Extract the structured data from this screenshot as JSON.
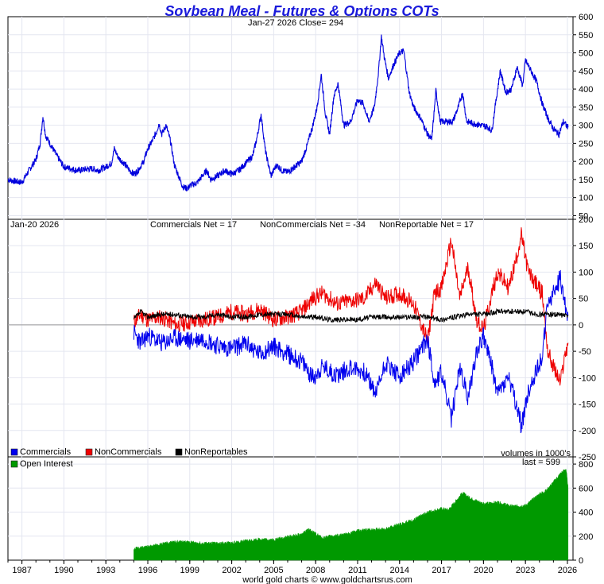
{
  "chart_data": {
    "type": "line",
    "title": "Soybean Meal - Futures & Options COTs",
    "footer": "world gold charts © www.goldchartsrus.com",
    "x_axis": {
      "range": [
        1986.0,
        2026.4
      ],
      "tick_labels": [
        "1987",
        "1990",
        "1993",
        "1996",
        "1999",
        "2002",
        "2005",
        "2008",
        "2011",
        "2014",
        "2017",
        "2020",
        "2023",
        "2026"
      ],
      "tick_values": [
        1987,
        1990,
        1993,
        1996,
        1999,
        2002,
        2005,
        2008,
        2011,
        2014,
        2017,
        2020,
        2023,
        2026
      ]
    },
    "price_panel": {
      "header": "Jan-27  2026   Close= 294",
      "ylim": [
        40,
        600
      ],
      "y_ticks": [
        50,
        100,
        150,
        200,
        250,
        300,
        350,
        400,
        450,
        500,
        550,
        600
      ],
      "series": {
        "color": "#0000dd",
        "points": [
          [
            1986.0,
            150
          ],
          [
            1986.5,
            145
          ],
          [
            1987.0,
            142
          ],
          [
            1987.5,
            175
          ],
          [
            1988.0,
            205
          ],
          [
            1988.3,
            250
          ],
          [
            1988.5,
            325
          ],
          [
            1988.7,
            270
          ],
          [
            1989.0,
            250
          ],
          [
            1989.5,
            215
          ],
          [
            1990.0,
            185
          ],
          [
            1990.5,
            180
          ],
          [
            1991.0,
            175
          ],
          [
            1991.5,
            178
          ],
          [
            1992.0,
            180
          ],
          [
            1992.5,
            175
          ],
          [
            1993.0,
            185
          ],
          [
            1993.4,
            195
          ],
          [
            1993.6,
            235
          ],
          [
            1993.9,
            210
          ],
          [
            1994.3,
            195
          ],
          [
            1994.7,
            175
          ],
          [
            1995.0,
            165
          ],
          [
            1995.3,
            175
          ],
          [
            1995.7,
            200
          ],
          [
            1996.0,
            235
          ],
          [
            1996.3,
            255
          ],
          [
            1996.6,
            280
          ],
          [
            1996.8,
            305
          ],
          [
            1997.0,
            275
          ],
          [
            1997.3,
            300
          ],
          [
            1997.6,
            260
          ],
          [
            1997.9,
            190
          ],
          [
            1998.2,
            160
          ],
          [
            1998.5,
            130
          ],
          [
            1998.8,
            125
          ],
          [
            1999.1,
            135
          ],
          [
            1999.5,
            140
          ],
          [
            1999.8,
            155
          ],
          [
            2000.2,
            175
          ],
          [
            2000.5,
            150
          ],
          [
            2001.0,
            160
          ],
          [
            2001.5,
            175
          ],
          [
            2002.0,
            165
          ],
          [
            2002.5,
            175
          ],
          [
            2003.0,
            195
          ],
          [
            2003.5,
            215
          ],
          [
            2003.8,
            265
          ],
          [
            2004.1,
            330
          ],
          [
            2004.4,
            230
          ],
          [
            2004.8,
            160
          ],
          [
            2005.2,
            190
          ],
          [
            2005.6,
            175
          ],
          [
            2006.0,
            170
          ],
          [
            2006.5,
            185
          ],
          [
            2007.0,
            200
          ],
          [
            2007.4,
            245
          ],
          [
            2007.8,
            300
          ],
          [
            2008.1,
            350
          ],
          [
            2008.4,
            440
          ],
          [
            2008.7,
            330
          ],
          [
            2009.0,
            275
          ],
          [
            2009.3,
            380
          ],
          [
            2009.6,
            415
          ],
          [
            2010.0,
            300
          ],
          [
            2010.5,
            310
          ],
          [
            2011.0,
            370
          ],
          [
            2011.4,
            360
          ],
          [
            2011.8,
            310
          ],
          [
            2012.2,
            350
          ],
          [
            2012.5,
            450
          ],
          [
            2012.7,
            545
          ],
          [
            2012.9,
            490
          ],
          [
            2013.2,
            430
          ],
          [
            2013.6,
            470
          ],
          [
            2014.0,
            500
          ],
          [
            2014.3,
            505
          ],
          [
            2014.7,
            390
          ],
          [
            2015.0,
            350
          ],
          [
            2015.5,
            320
          ],
          [
            2016.0,
            275
          ],
          [
            2016.3,
            260
          ],
          [
            2016.6,
            395
          ],
          [
            2016.9,
            310
          ],
          [
            2017.3,
            310
          ],
          [
            2017.8,
            310
          ],
          [
            2018.2,
            350
          ],
          [
            2018.5,
            390
          ],
          [
            2018.8,
            310
          ],
          [
            2019.3,
            305
          ],
          [
            2019.8,
            300
          ],
          [
            2020.3,
            295
          ],
          [
            2020.6,
            285
          ],
          [
            2020.9,
            370
          ],
          [
            2021.2,
            450
          ],
          [
            2021.6,
            390
          ],
          [
            2022.0,
            400
          ],
          [
            2022.4,
            460
          ],
          [
            2022.8,
            410
          ],
          [
            2023.0,
            480
          ],
          [
            2023.4,
            450
          ],
          [
            2023.8,
            420
          ],
          [
            2024.2,
            360
          ],
          [
            2024.6,
            320
          ],
          [
            2025.0,
            290
          ],
          [
            2025.4,
            275
          ],
          [
            2025.7,
            310
          ],
          [
            2026.05,
            294
          ]
        ]
      }
    },
    "cot_panel": {
      "header_date": "Jan-20  2026",
      "net_labels": {
        "commercials": "Commercials Net = 17",
        "noncommercials": "NonCommercials Net = -34",
        "nonreportable": "NonReportable Net = 17"
      },
      "units_note": "volumes in 1000's",
      "ylim": [
        -250,
        200
      ],
      "y_ticks": [
        200,
        150,
        100,
        50,
        0,
        -50,
        -100,
        -150,
        -200,
        -250
      ],
      "start_year": 1995.0,
      "legend": [
        {
          "name": "Commercials",
          "color": "#0000ee"
        },
        {
          "name": "NonCommercials",
          "color": "#ee0000"
        },
        {
          "name": "NonReportables",
          "color": "#000000"
        }
      ],
      "commercials": [
        [
          1995.0,
          -15
        ],
        [
          1995.5,
          -35
        ],
        [
          1996.0,
          -20
        ],
        [
          1997.0,
          -35
        ],
        [
          1998.0,
          -25
        ],
        [
          1999.0,
          -30
        ],
        [
          2000.0,
          -25
        ],
        [
          2001.0,
          -40
        ],
        [
          2002.0,
          -45
        ],
        [
          2003.0,
          -35
        ],
        [
          2004.0,
          -55
        ],
        [
          2005.0,
          -40
        ],
        [
          2006.0,
          -55
        ],
        [
          2007.0,
          -70
        ],
        [
          2007.8,
          -100
        ],
        [
          2008.5,
          -80
        ],
        [
          2009.5,
          -95
        ],
        [
          2010.5,
          -80
        ],
        [
          2011.5,
          -90
        ],
        [
          2012.3,
          -130
        ],
        [
          2013.0,
          -70
        ],
        [
          2014.0,
          -100
        ],
        [
          2015.0,
          -70
        ],
        [
          2016.0,
          -25
        ],
        [
          2016.5,
          -110
        ],
        [
          2017.0,
          -90
        ],
        [
          2017.7,
          -180
        ],
        [
          2018.3,
          -80
        ],
        [
          2018.9,
          -140
        ],
        [
          2019.5,
          -50
        ],
        [
          2020.0,
          -20
        ],
        [
          2020.6,
          -80
        ],
        [
          2021.0,
          -130
        ],
        [
          2021.8,
          -100
        ],
        [
          2022.3,
          -150
        ],
        [
          2022.7,
          -190
        ],
        [
          2023.2,
          -130
        ],
        [
          2023.7,
          -90
        ],
        [
          2024.2,
          -60
        ],
        [
          2024.6,
          40
        ],
        [
          2025.0,
          60
        ],
        [
          2025.5,
          90
        ],
        [
          2025.8,
          40
        ],
        [
          2026.05,
          17
        ]
      ],
      "noncommercials": [
        [
          1995.0,
          5
        ],
        [
          1995.5,
          20
        ],
        [
          1996.0,
          10
        ],
        [
          1997.0,
          15
        ],
        [
          1998.0,
          0
        ],
        [
          1999.0,
          5
        ],
        [
          2000.0,
          10
        ],
        [
          2001.0,
          15
        ],
        [
          2002.0,
          25
        ],
        [
          2003.0,
          20
        ],
        [
          2004.0,
          30
        ],
        [
          2005.0,
          10
        ],
        [
          2006.0,
          15
        ],
        [
          2007.0,
          25
        ],
        [
          2007.8,
          50
        ],
        [
          2008.5,
          60
        ],
        [
          2009.5,
          40
        ],
        [
          2010.5,
          45
        ],
        [
          2011.5,
          50
        ],
        [
          2012.3,
          80
        ],
        [
          2013.0,
          50
        ],
        [
          2014.0,
          60
        ],
        [
          2015.0,
          40
        ],
        [
          2016.0,
          -30
        ],
        [
          2016.5,
          60
        ],
        [
          2017.0,
          70
        ],
        [
          2017.7,
          160
        ],
        [
          2018.3,
          50
        ],
        [
          2018.9,
          110
        ],
        [
          2019.5,
          10
        ],
        [
          2020.0,
          -10
        ],
        [
          2020.6,
          60
        ],
        [
          2021.0,
          100
        ],
        [
          2021.8,
          70
        ],
        [
          2022.3,
          120
        ],
        [
          2022.7,
          170
        ],
        [
          2023.2,
          100
        ],
        [
          2023.7,
          80
        ],
        [
          2024.2,
          60
        ],
        [
          2024.6,
          -50
        ],
        [
          2025.0,
          -80
        ],
        [
          2025.5,
          -110
        ],
        [
          2025.8,
          -60
        ],
        [
          2026.05,
          -34
        ]
      ],
      "nonreportables": [
        [
          1995.0,
          10
        ],
        [
          1995.5,
          25
        ],
        [
          1996.0,
          15
        ],
        [
          1997.0,
          20
        ],
        [
          1998.0,
          20
        ],
        [
          1999.0,
          15
        ],
        [
          2000.0,
          15
        ],
        [
          2001.0,
          20
        ],
        [
          2002.0,
          15
        ],
        [
          2003.0,
          15
        ],
        [
          2004.0,
          20
        ],
        [
          2005.0,
          20
        ],
        [
          2006.0,
          20
        ],
        [
          2007.0,
          15
        ],
        [
          2008.0,
          15
        ],
        [
          2009.0,
          10
        ],
        [
          2010.0,
          10
        ],
        [
          2011.0,
          10
        ],
        [
          2012.0,
          15
        ],
        [
          2013.0,
          15
        ],
        [
          2014.0,
          15
        ],
        [
          2015.0,
          15
        ],
        [
          2016.0,
          15
        ],
        [
          2017.0,
          10
        ],
        [
          2018.0,
          15
        ],
        [
          2019.0,
          20
        ],
        [
          2020.0,
          20
        ],
        [
          2021.0,
          25
        ],
        [
          2022.0,
          25
        ],
        [
          2023.0,
          25
        ],
        [
          2024.0,
          20
        ],
        [
          2025.0,
          20
        ],
        [
          2026.05,
          17
        ]
      ]
    },
    "oi_panel": {
      "legend": "Open Interest",
      "color": "#009900",
      "last_label": "last = 599",
      "ylim": [
        0,
        860
      ],
      "y_ticks": [
        0,
        200,
        400,
        600,
        800
      ],
      "points": [
        [
          1995.0,
          95
        ],
        [
          1996.0,
          110
        ],
        [
          1997.0,
          135
        ],
        [
          1998.0,
          155
        ],
        [
          1999.0,
          150
        ],
        [
          2000.0,
          140
        ],
        [
          2001.0,
          140
        ],
        [
          2002.0,
          145
        ],
        [
          2003.0,
          160
        ],
        [
          2004.0,
          175
        ],
        [
          2005.0,
          170
        ],
        [
          2006.0,
          195
        ],
        [
          2007.0,
          215
        ],
        [
          2007.5,
          255
        ],
        [
          2008.5,
          185
        ],
        [
          2009.0,
          200
        ],
        [
          2010.0,
          210
        ],
        [
          2011.0,
          245
        ],
        [
          2012.0,
          255
        ],
        [
          2013.0,
          260
        ],
        [
          2014.0,
          300
        ],
        [
          2015.0,
          335
        ],
        [
          2016.0,
          400
        ],
        [
          2017.0,
          430
        ],
        [
          2017.5,
          420
        ],
        [
          2018.0,
          490
        ],
        [
          2018.5,
          560
        ],
        [
          2019.0,
          520
        ],
        [
          2020.0,
          470
        ],
        [
          2021.0,
          480
        ],
        [
          2022.0,
          450
        ],
        [
          2023.0,
          455
        ],
        [
          2024.0,
          550
        ],
        [
          2024.5,
          580
        ],
        [
          2025.0,
          650
        ],
        [
          2025.5,
          720
        ],
        [
          2025.9,
          760
        ],
        [
          2026.05,
          599
        ]
      ]
    }
  }
}
